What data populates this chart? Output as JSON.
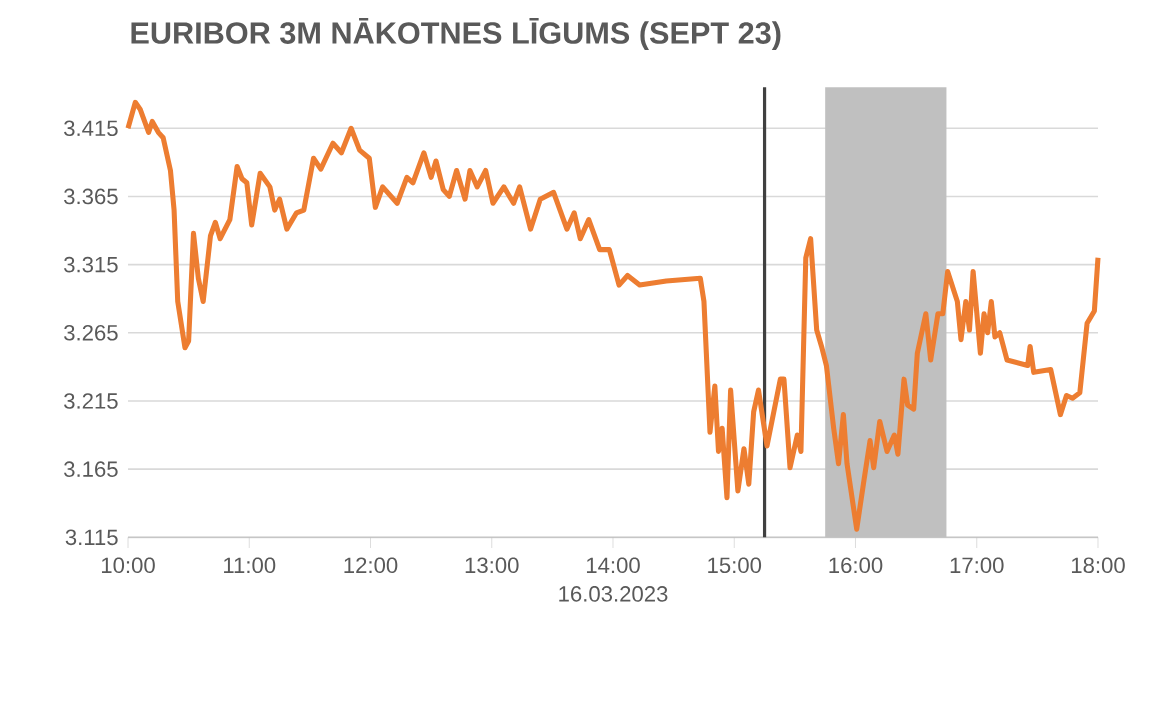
{
  "chart_data": {
    "type": "line",
    "title": "EURIBOR 3M NĀKOTNES LĪGUMS (SEPT 23)",
    "xlabel": "16.03.2023",
    "x": [
      10.0,
      10.06,
      10.1,
      10.17,
      10.2,
      10.25,
      10.29,
      10.35,
      10.38,
      10.41,
      10.47,
      10.5,
      10.54,
      10.58,
      10.62,
      10.68,
      10.72,
      10.76,
      10.84,
      10.9,
      10.94,
      10.98,
      11.02,
      11.09,
      11.17,
      11.21,
      11.25,
      11.31,
      11.39,
      11.45,
      11.53,
      11.59,
      11.69,
      11.76,
      11.84,
      11.91,
      11.99,
      12.04,
      12.1,
      12.22,
      12.3,
      12.35,
      12.44,
      12.5,
      12.54,
      12.6,
      12.65,
      12.71,
      12.78,
      12.82,
      12.88,
      12.95,
      13.01,
      13.1,
      13.18,
      13.23,
      13.32,
      13.4,
      13.51,
      13.62,
      13.68,
      13.73,
      13.8,
      13.89,
      13.97,
      14.05,
      14.12,
      14.22,
      14.44,
      14.72,
      14.75,
      14.8,
      14.84,
      14.87,
      14.9,
      14.94,
      14.97,
      15.03,
      15.08,
      15.12,
      15.16,
      15.2,
      15.27,
      15.38,
      15.41,
      15.46,
      15.52,
      15.55,
      15.59,
      15.63,
      15.68,
      15.72,
      15.76,
      15.82,
      15.86,
      15.9,
      15.93,
      16.01,
      16.07,
      16.12,
      16.15,
      16.2,
      16.26,
      16.32,
      16.35,
      16.4,
      16.43,
      16.48,
      16.51,
      16.58,
      16.62,
      16.68,
      16.72,
      16.76,
      16.84,
      16.87,
      16.91,
      16.94,
      16.97,
      17.03,
      17.06,
      17.09,
      17.12,
      17.15,
      17.19,
      17.25,
      17.42,
      17.44,
      17.47,
      17.61,
      17.69,
      17.74,
      17.79,
      17.85,
      17.91,
      17.97,
      18.0
    ],
    "series": [
      {
        "color": "#ed7d31",
        "values": [
          3.415,
          3.434,
          3.429,
          3.412,
          3.42,
          3.412,
          3.408,
          3.384,
          3.355,
          3.288,
          3.254,
          3.259,
          3.338,
          3.305,
          3.288,
          3.336,
          3.346,
          3.334,
          3.348,
          3.387,
          3.378,
          3.375,
          3.344,
          3.382,
          3.372,
          3.355,
          3.363,
          3.341,
          3.353,
          3.355,
          3.393,
          3.385,
          3.404,
          3.397,
          3.415,
          3.399,
          3.393,
          3.357,
          3.372,
          3.36,
          3.379,
          3.375,
          3.397,
          3.379,
          3.391,
          3.37,
          3.365,
          3.384,
          3.363,
          3.384,
          3.372,
          3.384,
          3.36,
          3.372,
          3.36,
          3.372,
          3.341,
          3.363,
          3.368,
          3.341,
          3.353,
          3.334,
          3.348,
          3.326,
          3.326,
          3.3,
          3.307,
          3.3,
          3.303,
          3.305,
          3.288,
          3.192,
          3.226,
          3.178,
          3.195,
          3.144,
          3.223,
          3.149,
          3.18,
          3.154,
          3.207,
          3.223,
          3.182,
          3.231,
          3.231,
          3.166,
          3.19,
          3.178,
          3.32,
          3.334,
          3.267,
          3.255,
          3.241,
          3.195,
          3.169,
          3.205,
          3.169,
          3.121,
          3.157,
          3.186,
          3.166,
          3.2,
          3.178,
          3.19,
          3.176,
          3.231,
          3.212,
          3.209,
          3.25,
          3.279,
          3.245,
          3.279,
          3.279,
          3.31,
          3.288,
          3.26,
          3.288,
          3.267,
          3.31,
          3.25,
          3.279,
          3.265,
          3.288,
          3.262,
          3.265,
          3.245,
          3.241,
          3.255,
          3.236,
          3.238,
          3.205,
          3.219,
          3.217,
          3.221,
          3.272,
          3.281,
          3.32
        ]
      }
    ],
    "xlim": [
      10,
      18
    ],
    "ylim": [
      3.115,
      3.445
    ],
    "xticks": [
      {
        "value": 10,
        "label": "10:00"
      },
      {
        "value": 11,
        "label": "11:00"
      },
      {
        "value": 12,
        "label": "12:00"
      },
      {
        "value": 13,
        "label": "13:00"
      },
      {
        "value": 14,
        "label": "14:00"
      },
      {
        "value": 15,
        "label": "15:00"
      },
      {
        "value": 16,
        "label": "16:00"
      },
      {
        "value": 17,
        "label": "17:00"
      },
      {
        "value": 18,
        "label": "18:00"
      }
    ],
    "yticks": [
      3.115,
      3.165,
      3.215,
      3.265,
      3.315,
      3.365,
      3.415
    ],
    "ref_lines": [
      {
        "axis": "x",
        "value": 15.25,
        "color": "#404040"
      }
    ],
    "bands": [
      {
        "axis": "x",
        "from": 15.75,
        "to": 16.75,
        "color": "#c0c0c0"
      }
    ],
    "grid": "y"
  }
}
